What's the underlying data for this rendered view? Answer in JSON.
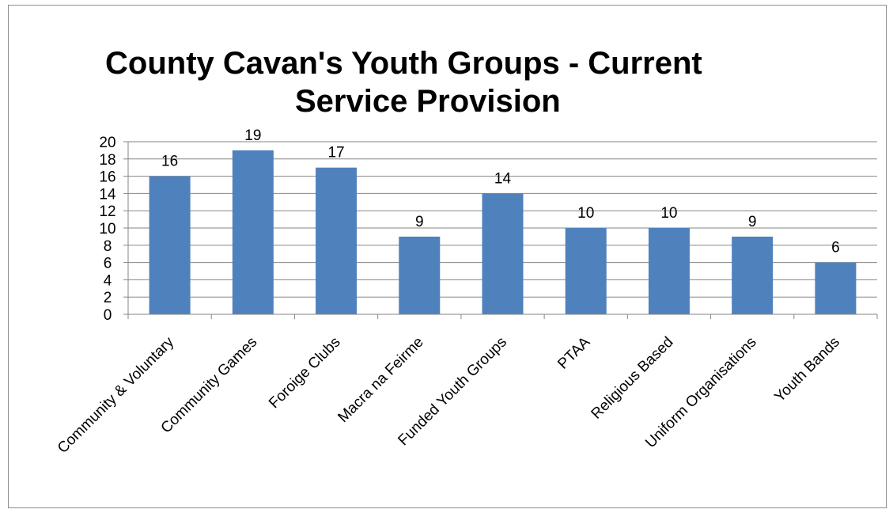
{
  "chart_data": {
    "type": "bar",
    "title_lines": [
      "County Cavan's Youth Groups - Current",
      "Service Provision"
    ],
    "categories": [
      "Community & Voluntary",
      "Community Games",
      "Foroige Clubs",
      "Macra na Feirme",
      "Funded Youth Groups",
      "PTAA",
      "Religious Based",
      "Uniform Organisations",
      "Youth Bands"
    ],
    "values": [
      16,
      19,
      17,
      9,
      14,
      10,
      10,
      9,
      6
    ],
    "ylim": [
      0,
      20
    ],
    "ytick_step": 2,
    "grid": true,
    "legend": "none",
    "data_labels": true,
    "bar_color": "#4f81bd",
    "gridline_color": "#868686"
  }
}
